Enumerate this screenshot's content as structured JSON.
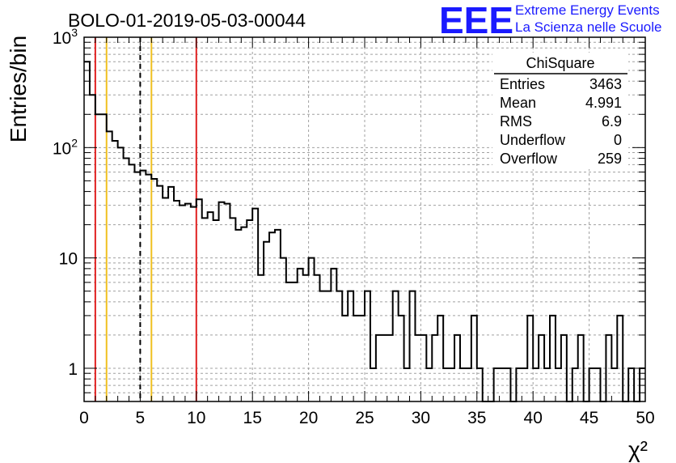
{
  "header": {
    "title": "BOLO-01-2019-05-03-00044",
    "brand_logo": "EEE",
    "brand_line1": "Extreme Energy Events",
    "brand_line2": "La Scienza nelle Scuole",
    "brand_color": "#1a1aff"
  },
  "stats_box": {
    "title": "ChiSquare",
    "rows": [
      {
        "label": "Entries",
        "value": "3463"
      },
      {
        "label": "Mean",
        "value": "4.991"
      },
      {
        "label": "RMS",
        "value": "6.9"
      },
      {
        "label": "Underflow",
        "value": "0"
      },
      {
        "label": "Overflow",
        "value": "259"
      }
    ]
  },
  "chart_data": {
    "type": "histogram",
    "xlabel": "χ²",
    "ylabel": "Entries/bin",
    "xlim": [
      0,
      50
    ],
    "ylim": [
      0.5,
      1000
    ],
    "y_scale": "log",
    "grid": true,
    "bin_width": 0.5,
    "x_ticks": [
      "0",
      "5",
      "10",
      "15",
      "20",
      "25",
      "30",
      "35",
      "40",
      "45",
      "50"
    ],
    "y_ticks": [
      {
        "value": 1,
        "label": "1"
      },
      {
        "value": 10,
        "label": "10"
      },
      {
        "value": 100,
        "label": "10",
        "exp": "2"
      },
      {
        "value": 1000,
        "label": "10",
        "exp": "3"
      }
    ],
    "values": [
      600,
      300,
      200,
      200,
      140,
      115,
      100,
      80,
      70,
      60,
      62,
      57,
      52,
      45,
      35,
      44,
      33,
      30,
      31,
      29,
      34,
      23,
      26,
      22,
      32,
      31,
      23,
      18,
      19,
      22,
      28,
      7,
      14,
      17,
      18,
      10,
      6,
      6,
      8,
      7,
      10,
      7,
      5,
      5,
      8,
      5,
      3,
      5,
      3,
      3,
      5,
      1,
      2,
      2,
      2,
      5,
      3,
      1,
      5,
      2,
      2,
      1,
      2,
      3,
      1,
      1,
      2,
      1,
      1,
      3,
      1,
      0,
      0,
      1,
      1,
      1,
      0,
      1,
      1,
      3,
      1,
      2,
      1,
      3,
      1,
      2,
      0,
      1,
      2,
      0,
      1,
      1,
      0,
      2,
      1,
      3,
      0,
      1,
      0,
      1
    ],
    "vertical_lines": [
      {
        "x": 1,
        "color": "#e02020",
        "style": "solid"
      },
      {
        "x": 2,
        "color": "#f0c020",
        "style": "solid"
      },
      {
        "x": 5,
        "color": "#000000",
        "style": "dashed"
      },
      {
        "x": 6,
        "color": "#f0c020",
        "style": "solid"
      },
      {
        "x": 10,
        "color": "#e02020",
        "style": "solid"
      }
    ]
  }
}
